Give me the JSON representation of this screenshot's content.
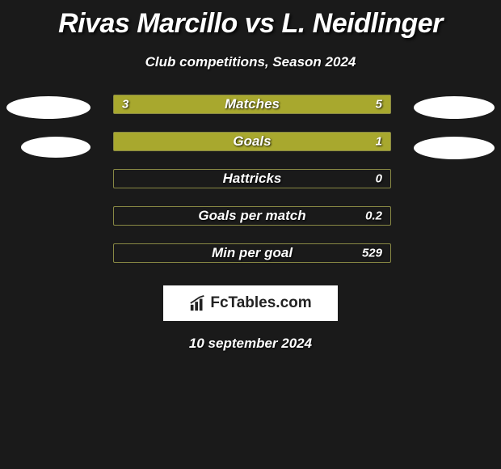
{
  "background_color": "#1a1a1a",
  "text_color": "#ffffff",
  "bar_fill_color": "#a8a82e",
  "bar_border_color": "#888844",
  "title": "Rivas Marcillo vs L. Neidlinger",
  "title_fontsize": 34,
  "subtitle": "Club competitions, Season 2024",
  "subtitle_fontsize": 17,
  "bars": [
    {
      "label": "Matches",
      "left_value": "3",
      "right_value": "5",
      "left_pct": 36,
      "right_pct": 64,
      "show_left": true
    },
    {
      "label": "Goals",
      "left_value": "",
      "right_value": "1",
      "left_pct": 0,
      "right_pct": 100,
      "show_left": false
    },
    {
      "label": "Hattricks",
      "left_value": "",
      "right_value": "0",
      "left_pct": 0,
      "right_pct": 0,
      "show_left": false
    },
    {
      "label": "Goals per match",
      "left_value": "",
      "right_value": "0.2",
      "left_pct": 0,
      "right_pct": 0,
      "show_left": false
    },
    {
      "label": "Min per goal",
      "left_value": "",
      "right_value": "529",
      "left_pct": 0,
      "right_pct": 0,
      "show_left": false
    }
  ],
  "brand_text": "FcTables.com",
  "date": "10 september 2024",
  "date_fontsize": 17,
  "flag_color": "#ffffff"
}
